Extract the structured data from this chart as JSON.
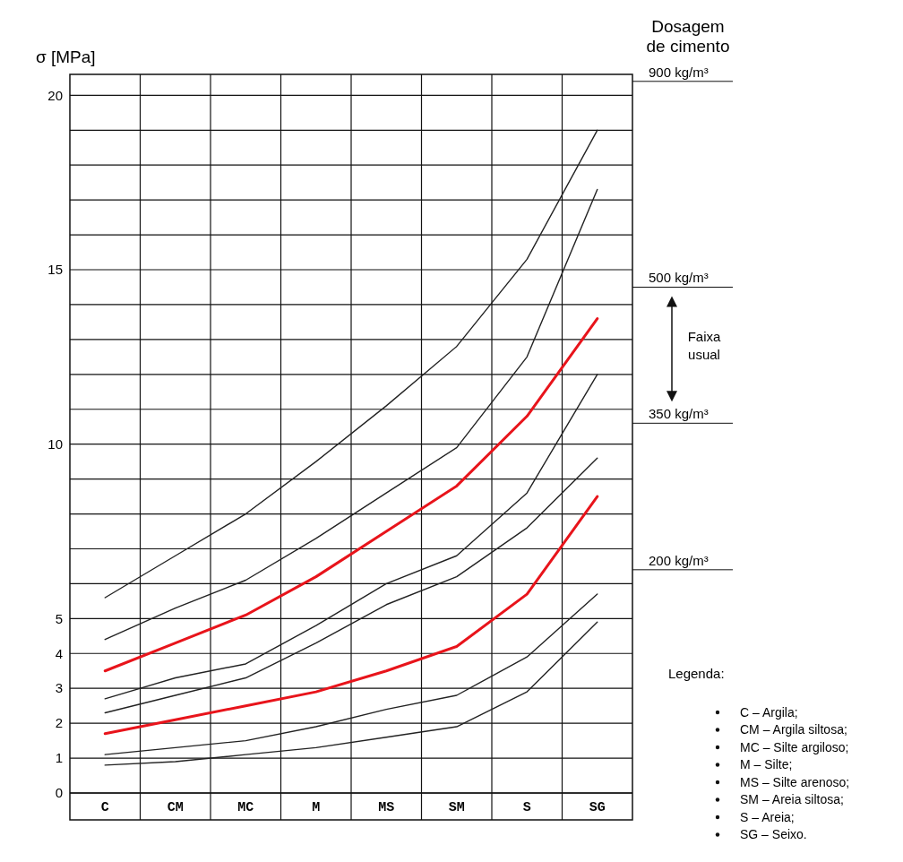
{
  "chart_data": {
    "type": "line",
    "ylabel": "σ [MPa]",
    "categories": [
      "C",
      "CM",
      "MC",
      "M",
      "MS",
      "SM",
      "S",
      "SG"
    ],
    "ylim": [
      0,
      20.6
    ],
    "yticks": [
      0,
      1,
      2,
      3,
      4,
      5,
      {
        "value": 6,
        "label": null
      },
      {
        "value": 7,
        "label": null
      },
      {
        "value": 8,
        "label": null
      },
      {
        "value": 9,
        "label": null
      },
      10,
      {
        "value": 11,
        "label": null
      },
      {
        "value": 12,
        "label": null
      },
      {
        "value": 13,
        "label": null
      },
      {
        "value": 14,
        "label": null
      },
      15,
      {
        "value": 16,
        "label": null
      },
      {
        "value": 17,
        "label": null
      },
      {
        "value": 18,
        "label": null
      },
      {
        "value": 19,
        "label": null
      },
      20
    ],
    "grid": true,
    "marker": "none",
    "line_style": "solid",
    "series": [
      {
        "color": "#222222",
        "values": [
          5.6,
          6.8,
          8.0,
          9.5,
          11.1,
          12.8,
          15.3,
          19.0
        ]
      },
      {
        "color": "#222222",
        "values": [
          4.4,
          5.3,
          6.1,
          7.3,
          8.6,
          9.9,
          12.5,
          17.3
        ]
      },
      {
        "color": "#e8141b",
        "values": [
          3.5,
          4.3,
          5.1,
          6.2,
          7.5,
          8.8,
          10.8,
          13.6
        ]
      },
      {
        "color": "#222222",
        "values": [
          2.7,
          3.3,
          3.7,
          4.8,
          6.0,
          6.8,
          8.6,
          12.0
        ]
      },
      {
        "color": "#222222",
        "values": [
          2.3,
          2.8,
          3.3,
          4.3,
          5.4,
          6.2,
          7.6,
          9.6
        ]
      },
      {
        "color": "#e8141b",
        "values": [
          1.7,
          2.1,
          2.5,
          2.9,
          3.5,
          4.2,
          5.7,
          8.5
        ]
      },
      {
        "color": "#222222",
        "values": [
          1.1,
          1.3,
          1.5,
          1.9,
          2.4,
          2.8,
          3.9,
          5.7
        ]
      },
      {
        "color": "#222222",
        "values": [
          0.8,
          0.9,
          1.1,
          1.3,
          1.6,
          1.9,
          2.9,
          4.9
        ]
      }
    ],
    "annotations": [
      "Dosagem\nde cimento",
      "Faixa\nusual",
      "Legenda:",
      "C – Argila;",
      "CM – Argila siltosa;",
      "MC – Silte argiloso;",
      "M – Silte;",
      "MS – Silte arenoso;",
      "SM – Areia siltosa;",
      "S – Areia;",
      "SG – Seixo."
    ],
    "ref_lines": [
      {
        "axis": "y",
        "value": 20.4,
        "label": "900 kg/m³"
      },
      {
        "axis": "y",
        "value": 14.5,
        "label": "500 kg/m³"
      },
      {
        "axis": "y",
        "value": 10.6,
        "label": "350 kg/m³"
      },
      {
        "axis": "y",
        "value": 6.4,
        "label": "200 kg/m³"
      }
    ]
  }
}
